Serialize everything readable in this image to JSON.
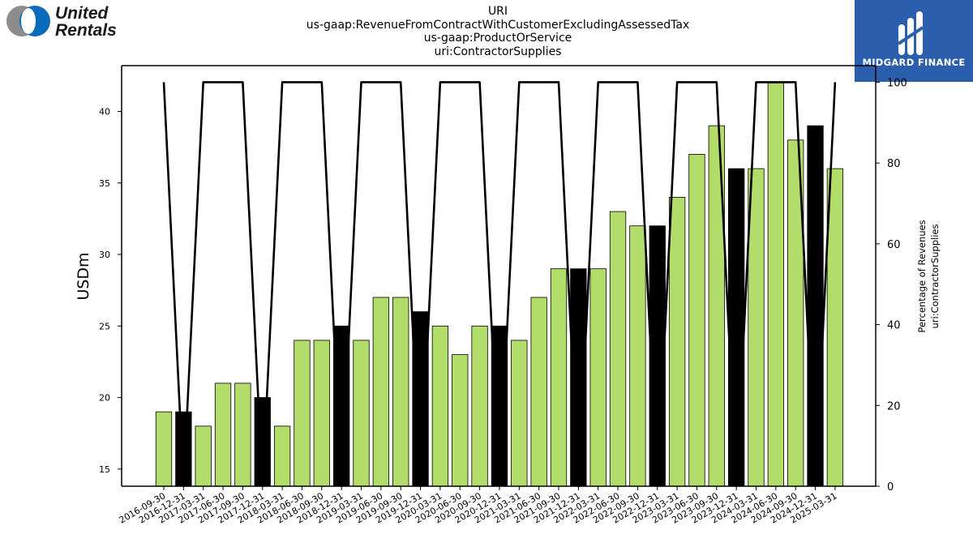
{
  "logos": {
    "left": {
      "name": "United Rentals",
      "lines": [
        "United",
        "Rentals"
      ]
    },
    "right": {
      "name": "MIDGARD FINANCE"
    }
  },
  "chart_data": {
    "type": "bar",
    "title": [
      "URI",
      "us-gaap:RevenueFromContractWithCustomerExcludingAssessedTax",
      "us-gaap:ProductOrService",
      "uri:ContractorSupplies"
    ],
    "ylabel": "USDm",
    "y2label": [
      "Percentage of Revenues",
      "uri:ContractorSupplies"
    ],
    "ylim": [
      13.8,
      43.2
    ],
    "y2lim": [
      0,
      104.1
    ],
    "yticks": [
      15,
      20,
      25,
      30,
      35,
      40
    ],
    "y2ticks": [
      0,
      20,
      40,
      60,
      80,
      100
    ],
    "categories": [
      "2016-09-30",
      "2016-12-31",
      "2017-03-31",
      "2017-06-30",
      "2017-09-30",
      "2017-12-31",
      "2018-03-31",
      "2018-06-30",
      "2018-09-30",
      "2018-12-31",
      "2019-03-31",
      "2019-06-30",
      "2019-09-30",
      "2019-12-31",
      "2020-03-31",
      "2020-06-30",
      "2020-09-30",
      "2020-12-31",
      "2021-03-31",
      "2021-06-30",
      "2021-09-30",
      "2021-12-31",
      "2022-03-31",
      "2022-06-30",
      "2022-09-30",
      "2022-12-31",
      "2023-03-31",
      "2023-06-30",
      "2023-09-30",
      "2023-12-31",
      "2024-03-31",
      "2024-06-30",
      "2024-09-30",
      "2024-12-31",
      "2025-03-31"
    ],
    "series": [
      {
        "name": "",
        "type": "bar",
        "axis": "left",
        "values": [
          19,
          19,
          18,
          21,
          21,
          20,
          18,
          24,
          24,
          25,
          24,
          27,
          27,
          26,
          25,
          23,
          25,
          25,
          24,
          27,
          29,
          29,
          29,
          33,
          32,
          32,
          34,
          37,
          39,
          36,
          36,
          42,
          38,
          39,
          36
        ],
        "highlight": [
          1,
          5,
          9,
          13,
          17,
          21,
          25,
          29,
          33
        ]
      },
      {
        "name": "",
        "type": "line",
        "axis": "right",
        "values": [
          100,
          0,
          100,
          100,
          100,
          0,
          100,
          100,
          100,
          0,
          100,
          100,
          100,
          0,
          100,
          100,
          100,
          0,
          100,
          100,
          100,
          0,
          100,
          100,
          100,
          0,
          100,
          100,
          100,
          0,
          100,
          100,
          100,
          0,
          100
        ]
      }
    ],
    "colors": {
      "bar": "#b3dd6a",
      "highlight": "#000000",
      "line": "#000000",
      "bar_edge": "#000000"
    },
    "grid": false
  }
}
